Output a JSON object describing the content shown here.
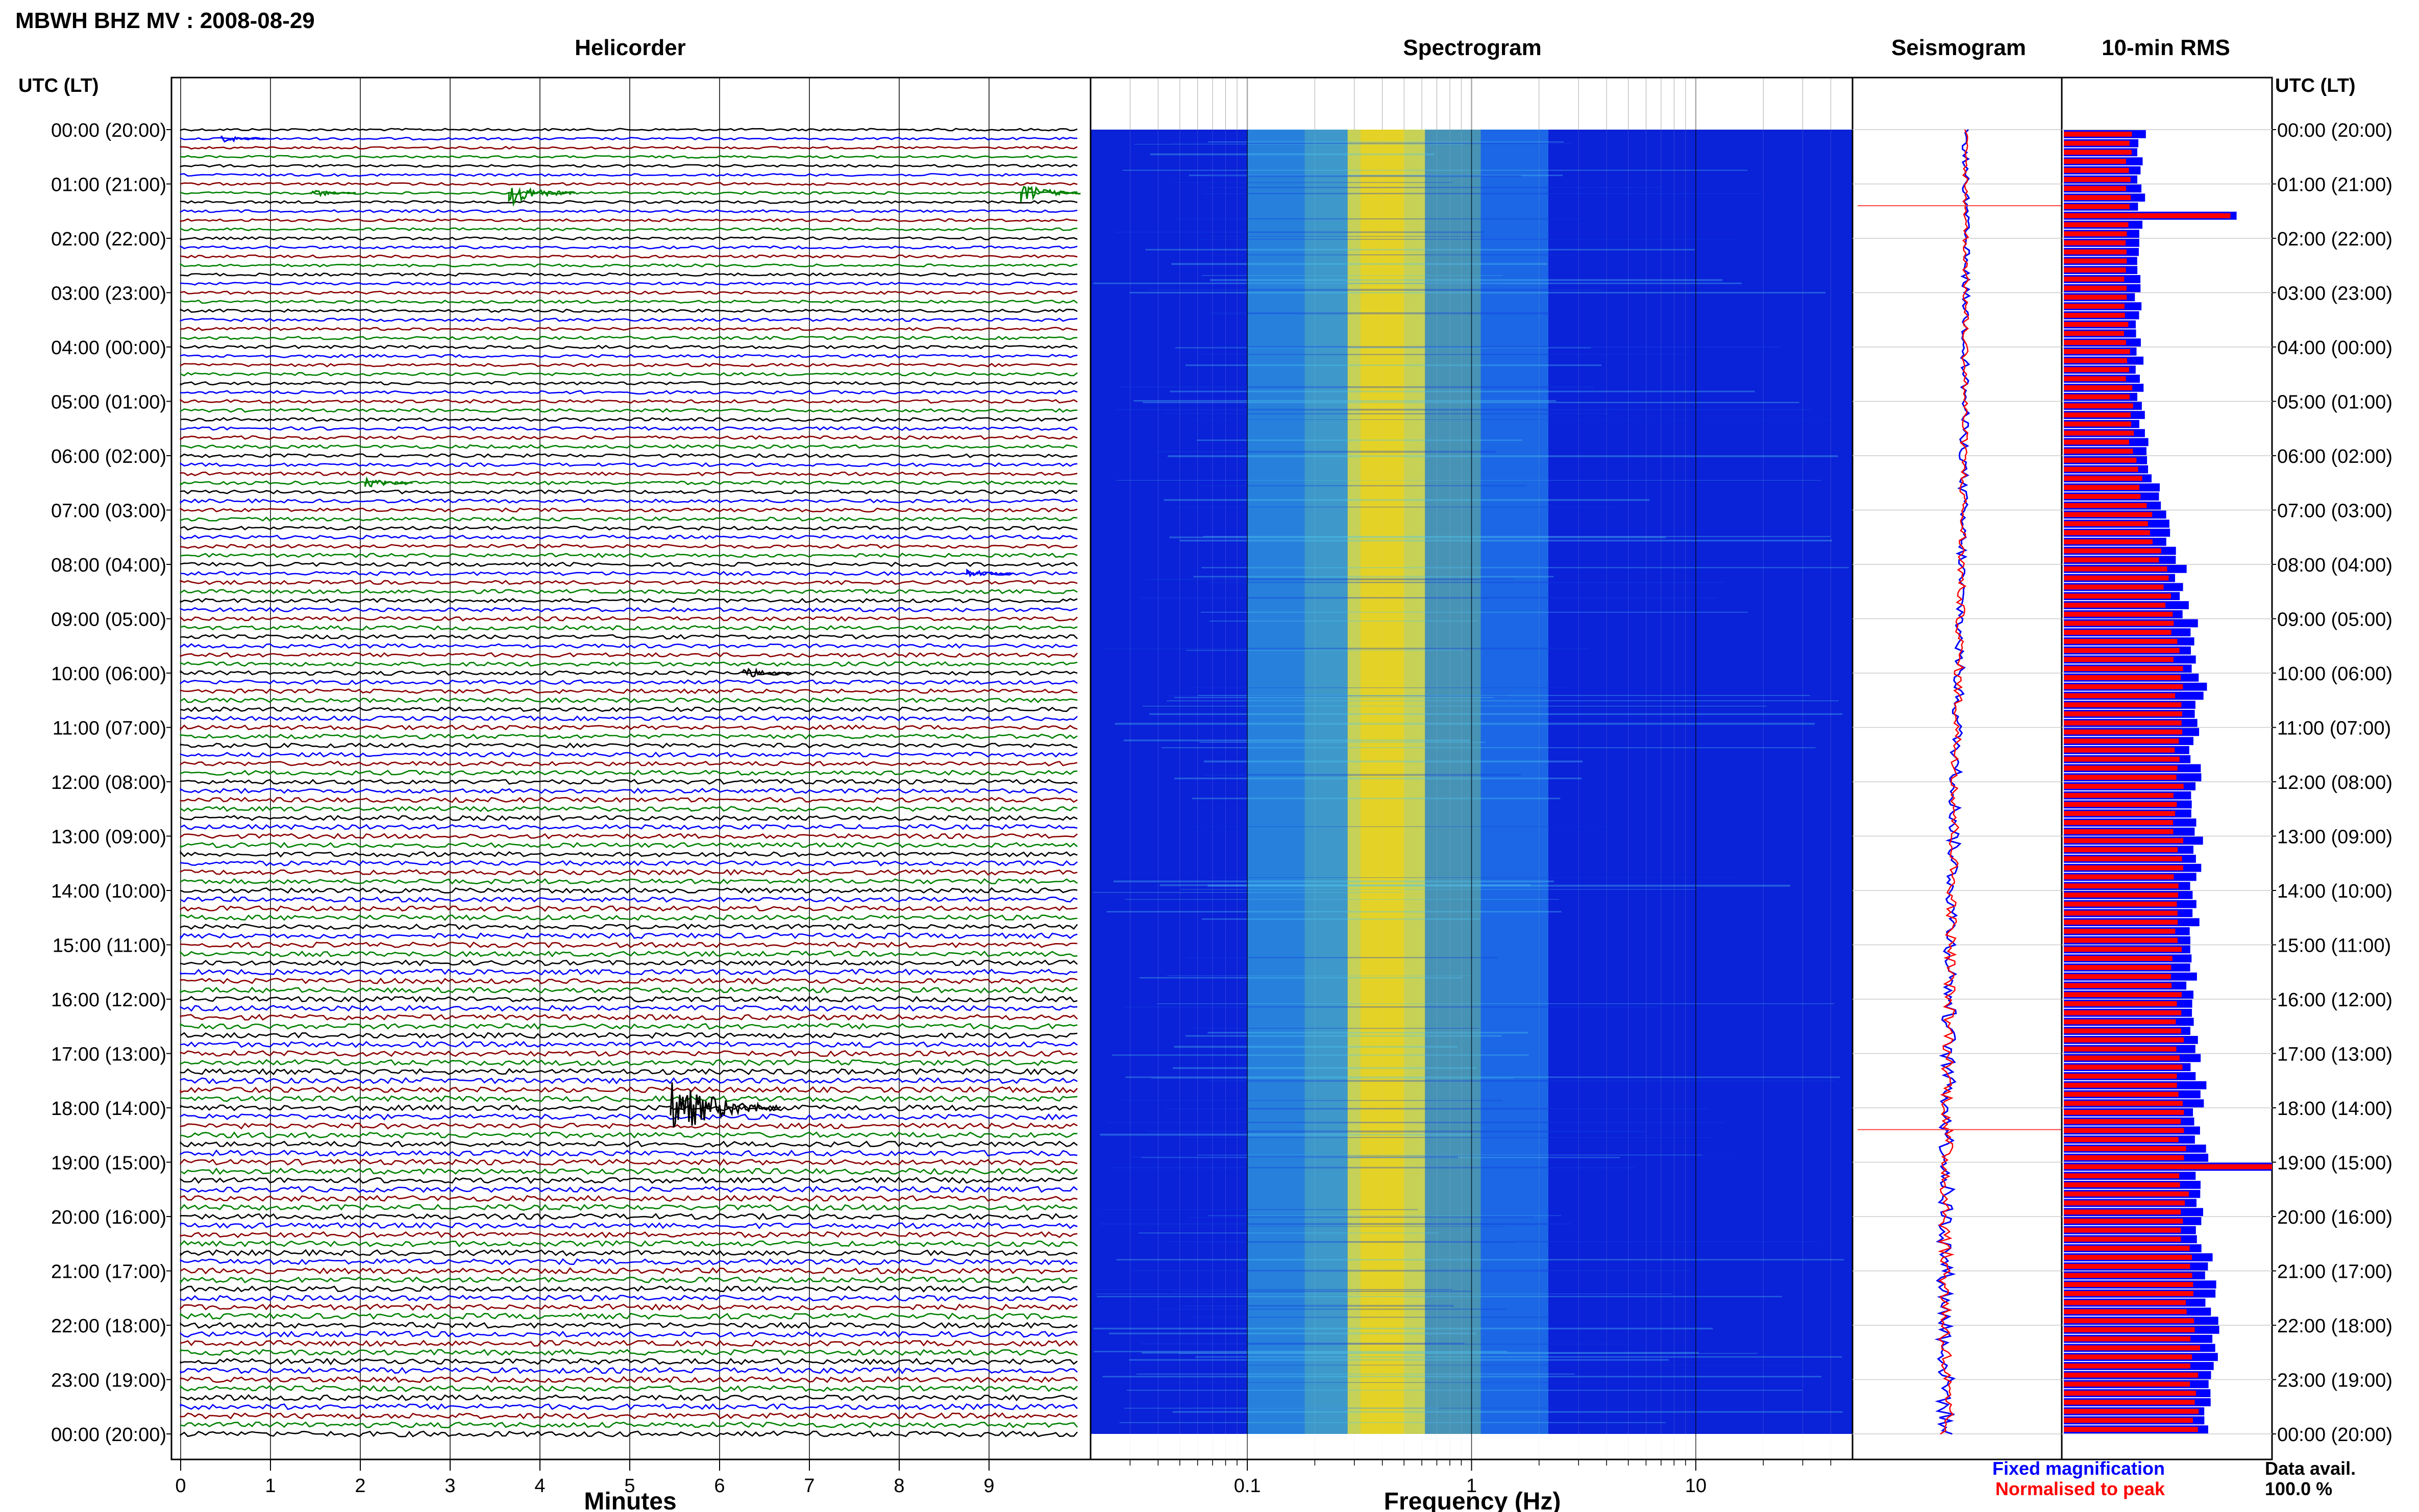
{
  "header": {
    "title": "MBWH BHZ MV : 2008-08-29",
    "row_axis_label": "UTC (LT)"
  },
  "panels": {
    "helicorder": "Helicorder",
    "spectrogram": "Spectrogram",
    "seismogram": "Seismogram",
    "rms": "10-min RMS"
  },
  "footer": {
    "legend_fixed": "Fixed magnification",
    "legend_normalised": "Normalised to peak",
    "data_avail_label": "Data avail.",
    "data_avail_value": "100.0 %"
  },
  "colors": {
    "helicorder_traces": [
      "#000000",
      "#0000ff",
      "#8b0000",
      "#008000"
    ],
    "fixed": "#0000ff",
    "normalised": "#ff0000"
  },
  "chart_data": [
    {
      "type": "line",
      "title": "Helicorder",
      "xlabel": "Minutes",
      "x_ticks": [
        0,
        1,
        2,
        3,
        4,
        5,
        6,
        7,
        8,
        9
      ],
      "xlim": [
        0,
        10
      ],
      "row_labels": [
        "00:00 (20:00)",
        "01:00 (21:00)",
        "02:00 (22:00)",
        "03:00 (23:00)",
        "04:00 (00:00)",
        "05:00 (01:00)",
        "06:00 (02:00)",
        "07:00 (03:00)",
        "08:00 (04:00)",
        "09:00 (05:00)",
        "10:00 (06:00)",
        "11:00 (07:00)",
        "12:00 (08:00)",
        "13:00 (09:00)",
        "14:00 (10:00)",
        "15:00 (11:00)",
        "16:00 (12:00)",
        "17:00 (13:00)",
        "18:00 (14:00)",
        "19:00 (15:00)",
        "20:00 (16:00)",
        "21:00 (17:00)",
        "22:00 (18:00)",
        "23:00 (19:00)",
        "00:00 (20:00)"
      ],
      "lines_per_hour": 6,
      "events": [
        {
          "hour": 1,
          "line": 1,
          "minute": 3.7,
          "amp": 2.5
        },
        {
          "hour": 1,
          "line": 1,
          "minute": 9.4,
          "amp": 2.0
        },
        {
          "hour": 1,
          "line": 1,
          "minute": 1.5,
          "amp": 0.8
        },
        {
          "hour": 0,
          "line": 1,
          "minute": 0.5,
          "amp": 0.8
        },
        {
          "hour": 18,
          "line": 0,
          "minute": 5.5,
          "amp": 6.0
        },
        {
          "hour": 10,
          "line": 0,
          "minute": 6.3,
          "amp": 1.2
        },
        {
          "hour": 8,
          "line": 1,
          "minute": 8.8,
          "amp": 0.9
        },
        {
          "hour": 6,
          "line": 3,
          "minute": 2.1,
          "amp": 1.0
        }
      ]
    },
    {
      "type": "heatmap",
      "title": "Spectrogram",
      "xlabel": "Frequency (Hz)",
      "x_scale": "log",
      "xlim": [
        0.02,
        50
      ],
      "x_ticks": [
        0.1,
        1,
        10
      ],
      "x_tick_labels": [
        "0.1",
        "1",
        "10"
      ],
      "peak_frequency_hz": 0.4,
      "y_hours": 24
    },
    {
      "type": "line",
      "title": "Seismogram",
      "series": [
        {
          "name": "Fixed magnification"
        },
        {
          "name": "Normalised to peak"
        }
      ],
      "spikes_hour": [
        1.4,
        18.4
      ]
    },
    {
      "type": "bar",
      "title": "10-min RMS",
      "orientation": "horizontal",
      "rows": 144,
      "series": [
        {
          "name": "Fixed magnification",
          "envelope_hours": [
            0,
            2,
            4,
            6,
            8,
            10,
            12,
            14,
            16,
            18,
            20,
            22,
            24
          ],
          "envelope_values": [
            0.38,
            0.37,
            0.36,
            0.4,
            0.56,
            0.66,
            0.64,
            0.64,
            0.63,
            0.66,
            0.67,
            0.72,
            0.72
          ]
        },
        {
          "name": "Normalised to peak",
          "envelope_hours": [
            0,
            2,
            4,
            6,
            8,
            10,
            12,
            14,
            16,
            18,
            20,
            22,
            24
          ],
          "envelope_values": [
            0.32,
            0.31,
            0.31,
            0.34,
            0.48,
            0.56,
            0.56,
            0.56,
            0.55,
            0.58,
            0.59,
            0.64,
            0.64
          ]
        }
      ],
      "spikes": [
        {
          "row": 9,
          "fixed": 0.83,
          "normalised": 0.8
        },
        {
          "row": 114,
          "fixed": 1.0,
          "normalised": 1.0
        }
      ]
    }
  ]
}
